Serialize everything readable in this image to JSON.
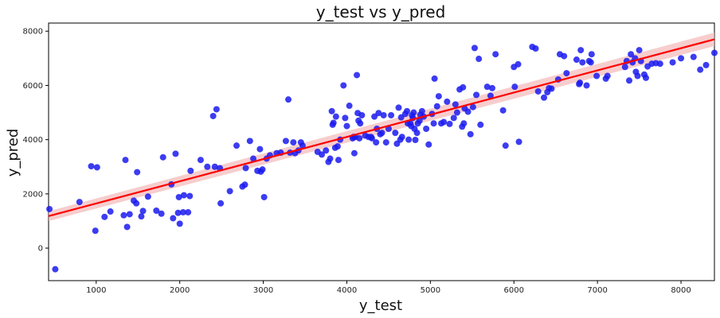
{
  "chart_data": {
    "type": "scatter",
    "title": "y_test vs y_pred",
    "xlabel": "y_test",
    "ylabel": "y_pred",
    "xlim": [
      430,
      8400
    ],
    "ylim": [
      -1200,
      8300
    ],
    "xticks": [
      1000,
      2000,
      3000,
      4000,
      5000,
      6000,
      7000,
      8000
    ],
    "yticks": [
      0,
      2000,
      4000,
      6000,
      8000
    ],
    "grid": false,
    "colors": {
      "points": "#1a1aee",
      "fit_line": "#ff0000",
      "ci_band": "#f4b8b8"
    },
    "regression": {
      "x": [
        430,
        8400
      ],
      "y": [
        1180,
        7700
      ],
      "ci_halfwidth": [
        180,
        250
      ]
    },
    "points": [
      [
        440,
        1440
      ],
      [
        510,
        -780
      ],
      [
        800,
        1700
      ],
      [
        940,
        3020
      ],
      [
        990,
        640
      ],
      [
        1010,
        2980
      ],
      [
        1100,
        1150
      ],
      [
        1170,
        1350
      ],
      [
        1330,
        1210
      ],
      [
        1350,
        3250
      ],
      [
        1370,
        780
      ],
      [
        1400,
        1250
      ],
      [
        1450,
        1750
      ],
      [
        1480,
        1650
      ],
      [
        1490,
        2800
      ],
      [
        1540,
        1170
      ],
      [
        1560,
        1370
      ],
      [
        1620,
        1900
      ],
      [
        1720,
        1380
      ],
      [
        1780,
        1270
      ],
      [
        1800,
        3350
      ],
      [
        1900,
        2350
      ],
      [
        1920,
        1100
      ],
      [
        1950,
        3480
      ],
      [
        1980,
        1300
      ],
      [
        1990,
        1880
      ],
      [
        2000,
        900
      ],
      [
        2040,
        1320
      ],
      [
        2050,
        1950
      ],
      [
        2100,
        1320
      ],
      [
        2120,
        1920
      ],
      [
        2130,
        2850
      ],
      [
        2250,
        3250
      ],
      [
        2330,
        3000
      ],
      [
        2400,
        4870
      ],
      [
        2420,
        3000
      ],
      [
        2440,
        5120
      ],
      [
        2480,
        2950
      ],
      [
        2490,
        1650
      ],
      [
        2600,
        2100
      ],
      [
        2680,
        3780
      ],
      [
        2750,
        2270
      ],
      [
        2780,
        2340
      ],
      [
        2790,
        2950
      ],
      [
        2840,
        3950
      ],
      [
        2880,
        3300
      ],
      [
        2930,
        2850
      ],
      [
        2960,
        3650
      ],
      [
        2970,
        2820
      ],
      [
        2990,
        2900
      ],
      [
        3010,
        1880
      ],
      [
        3040,
        3300
      ],
      [
        3080,
        3420
      ],
      [
        3160,
        3500
      ],
      [
        3210,
        3520
      ],
      [
        3270,
        3950
      ],
      [
        3300,
        5480
      ],
      [
        3320,
        3520
      ],
      [
        3360,
        3900
      ],
      [
        3380,
        3500
      ],
      [
        3420,
        3600
      ],
      [
        3450,
        3900
      ],
      [
        3470,
        3780
      ],
      [
        3650,
        3550
      ],
      [
        3700,
        3450
      ],
      [
        3750,
        3600
      ],
      [
        3780,
        3180
      ],
      [
        3800,
        3300
      ],
      [
        3820,
        5050
      ],
      [
        3830,
        4550
      ],
      [
        3840,
        4620
      ],
      [
        3860,
        3700
      ],
      [
        3870,
        4850
      ],
      [
        3890,
        3750
      ],
      [
        3900,
        3250
      ],
      [
        3920,
        4000
      ],
      [
        3960,
        6000
      ],
      [
        3980,
        4800
      ],
      [
        4000,
        4500
      ],
      [
        4030,
        5250
      ],
      [
        4070,
        4050
      ],
      [
        4080,
        4100
      ],
      [
        4090,
        3500
      ],
      [
        4100,
        4100
      ],
      [
        4120,
        6380
      ],
      [
        4130,
        4980
      ],
      [
        4140,
        4700
      ],
      [
        4150,
        4050
      ],
      [
        4160,
        4600
      ],
      [
        4180,
        4900
      ],
      [
        4220,
        4150
      ],
      [
        4260,
        4100
      ],
      [
        4290,
        4100
      ],
      [
        4300,
        4050
      ],
      [
        4330,
        4850
      ],
      [
        4350,
        3900
      ],
      [
        4360,
        4400
      ],
      [
        4380,
        4980
      ],
      [
        4400,
        4200
      ],
      [
        4420,
        4250
      ],
      [
        4440,
        4900
      ],
      [
        4470,
        3900
      ],
      [
        4500,
        4400
      ],
      [
        4530,
        4900
      ],
      [
        4580,
        4250
      ],
      [
        4600,
        3850
      ],
      [
        4620,
        5180
      ],
      [
        4640,
        4000
      ],
      [
        4650,
        4820
      ],
      [
        4660,
        4100
      ],
      [
        4700,
        4950
      ],
      [
        4720,
        5050
      ],
      [
        4730,
        4600
      ],
      [
        4740,
        4000
      ],
      [
        4760,
        4600
      ],
      [
        4770,
        4500
      ],
      [
        4780,
        4900
      ],
      [
        4790,
        4800
      ],
      [
        4800,
        5000
      ],
      [
        4810,
        4400
      ],
      [
        4820,
        3990
      ],
      [
        4840,
        4250
      ],
      [
        4850,
        4600
      ],
      [
        4870,
        4700
      ],
      [
        4880,
        4920
      ],
      [
        4900,
        5050
      ],
      [
        4920,
        4850
      ],
      [
        4950,
        4400
      ],
      [
        4980,
        3820
      ],
      [
        5020,
        4950
      ],
      [
        5040,
        4600
      ],
      [
        5050,
        6250
      ],
      [
        5080,
        5230
      ],
      [
        5100,
        5600
      ],
      [
        5130,
        4600
      ],
      [
        5160,
        4650
      ],
      [
        5200,
        5400
      ],
      [
        5230,
        4580
      ],
      [
        5280,
        4800
      ],
      [
        5300,
        5300
      ],
      [
        5320,
        5000
      ],
      [
        5350,
        5850
      ],
      [
        5380,
        4480
      ],
      [
        5390,
        5930
      ],
      [
        5400,
        4600
      ],
      [
        5410,
        5150
      ],
      [
        5450,
        5030
      ],
      [
        5480,
        4200
      ],
      [
        5510,
        5200
      ],
      [
        5530,
        7380
      ],
      [
        5550,
        5650
      ],
      [
        5580,
        6980
      ],
      [
        5600,
        4550
      ],
      [
        5680,
        5950
      ],
      [
        5720,
        5620
      ],
      [
        5740,
        5900
      ],
      [
        5780,
        7150
      ],
      [
        5870,
        5080
      ],
      [
        5900,
        3780
      ],
      [
        6000,
        6680
      ],
      [
        6010,
        5950
      ],
      [
        6050,
        6780
      ],
      [
        6060,
        3920
      ],
      [
        6220,
        7420
      ],
      [
        6260,
        7360
      ],
      [
        6290,
        5780
      ],
      [
        6360,
        5550
      ],
      [
        6400,
        5750
      ],
      [
        6420,
        5900
      ],
      [
        6450,
        5880
      ],
      [
        6530,
        6220
      ],
      [
        6550,
        7150
      ],
      [
        6600,
        7080
      ],
      [
        6630,
        6450
      ],
      [
        6750,
        6950
      ],
      [
        6780,
        6050
      ],
      [
        6790,
        6100
      ],
      [
        6800,
        7300
      ],
      [
        6820,
        6850
      ],
      [
        6870,
        6000
      ],
      [
        6900,
        6900
      ],
      [
        6920,
        6850
      ],
      [
        6930,
        7150
      ],
      [
        6990,
        6350
      ],
      [
        7100,
        6250
      ],
      [
        7120,
        6350
      ],
      [
        7330,
        6680
      ],
      [
        7350,
        6900
      ],
      [
        7380,
        6180
      ],
      [
        7400,
        7150
      ],
      [
        7420,
        6850
      ],
      [
        7450,
        7000
      ],
      [
        7460,
        6500
      ],
      [
        7480,
        6350
      ],
      [
        7500,
        7300
      ],
      [
        7520,
        6900
      ],
      [
        7560,
        6400
      ],
      [
        7580,
        6280
      ],
      [
        7600,
        6700
      ],
      [
        7650,
        6800
      ],
      [
        7700,
        6820
      ],
      [
        7750,
        6800
      ],
      [
        7900,
        6850
      ],
      [
        8000,
        7000
      ],
      [
        8150,
        7050
      ],
      [
        8230,
        6580
      ],
      [
        8300,
        6750
      ],
      [
        8400,
        7200
      ]
    ]
  }
}
